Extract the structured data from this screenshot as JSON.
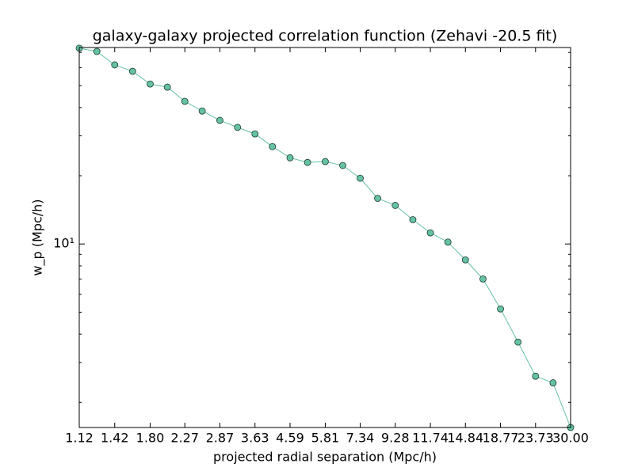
{
  "chart_data": {
    "type": "line",
    "title": "galaxy-galaxy projected correlation function (Zehavi -20.5 fit)",
    "xlabel": "projected radial separation (Mpc/h)",
    "ylabel": "w_p (Mpc/h)",
    "x": [
      1.12,
      1.26,
      1.42,
      1.6,
      1.8,
      2.02,
      2.27,
      2.55,
      2.87,
      3.23,
      3.63,
      4.08,
      4.59,
      5.16,
      5.81,
      6.53,
      7.34,
      8.25,
      9.28,
      10.44,
      11.74,
      13.2,
      14.84,
      16.69,
      18.77,
      21.1,
      23.73,
      26.68,
      30.0
    ],
    "values": [
      73.1,
      70.7,
      61.7,
      57.8,
      50.8,
      49.2,
      42.6,
      38.6,
      35.1,
      32.7,
      30.6,
      26.9,
      24.0,
      22.9,
      23.1,
      22.2,
      19.5,
      15.9,
      14.8,
      12.8,
      11.2,
      10.2,
      8.51,
      7.01,
      5.17,
      3.69,
      2.61,
      2.44,
      1.55
    ],
    "color": "#66c2a5",
    "xscale": "log",
    "yscale": "log",
    "xlim": [
      1.12,
      30.0
    ],
    "ylim": [
      1.55,
      73.6
    ],
    "xticks": [
      {
        "value": 1.12,
        "label": "1.12"
      },
      {
        "value": 1.42,
        "label": "1.42"
      },
      {
        "value": 1.8,
        "label": "1.80"
      },
      {
        "value": 2.27,
        "label": "2.27"
      },
      {
        "value": 2.87,
        "label": "2.87"
      },
      {
        "value": 3.63,
        "label": "3.63"
      },
      {
        "value": 4.59,
        "label": "4.59"
      },
      {
        "value": 5.81,
        "label": "5.81"
      },
      {
        "value": 7.34,
        "label": "7.34"
      },
      {
        "value": 9.28,
        "label": "9.28"
      },
      {
        "value": 11.74,
        "label": "11.74"
      },
      {
        "value": 14.84,
        "label": "14.84"
      },
      {
        "value": 18.77,
        "label": "18.77"
      },
      {
        "value": 23.73,
        "label": "23.73"
      },
      {
        "value": 30.0,
        "label": "30.00"
      }
    ],
    "yticks": [
      {
        "value": 10,
        "label": "10¹"
      }
    ],
    "yminorticks": [
      2,
      3,
      4,
      5,
      6,
      7,
      8,
      9,
      20,
      30,
      40,
      50,
      60,
      70
    ],
    "grid": false
  }
}
